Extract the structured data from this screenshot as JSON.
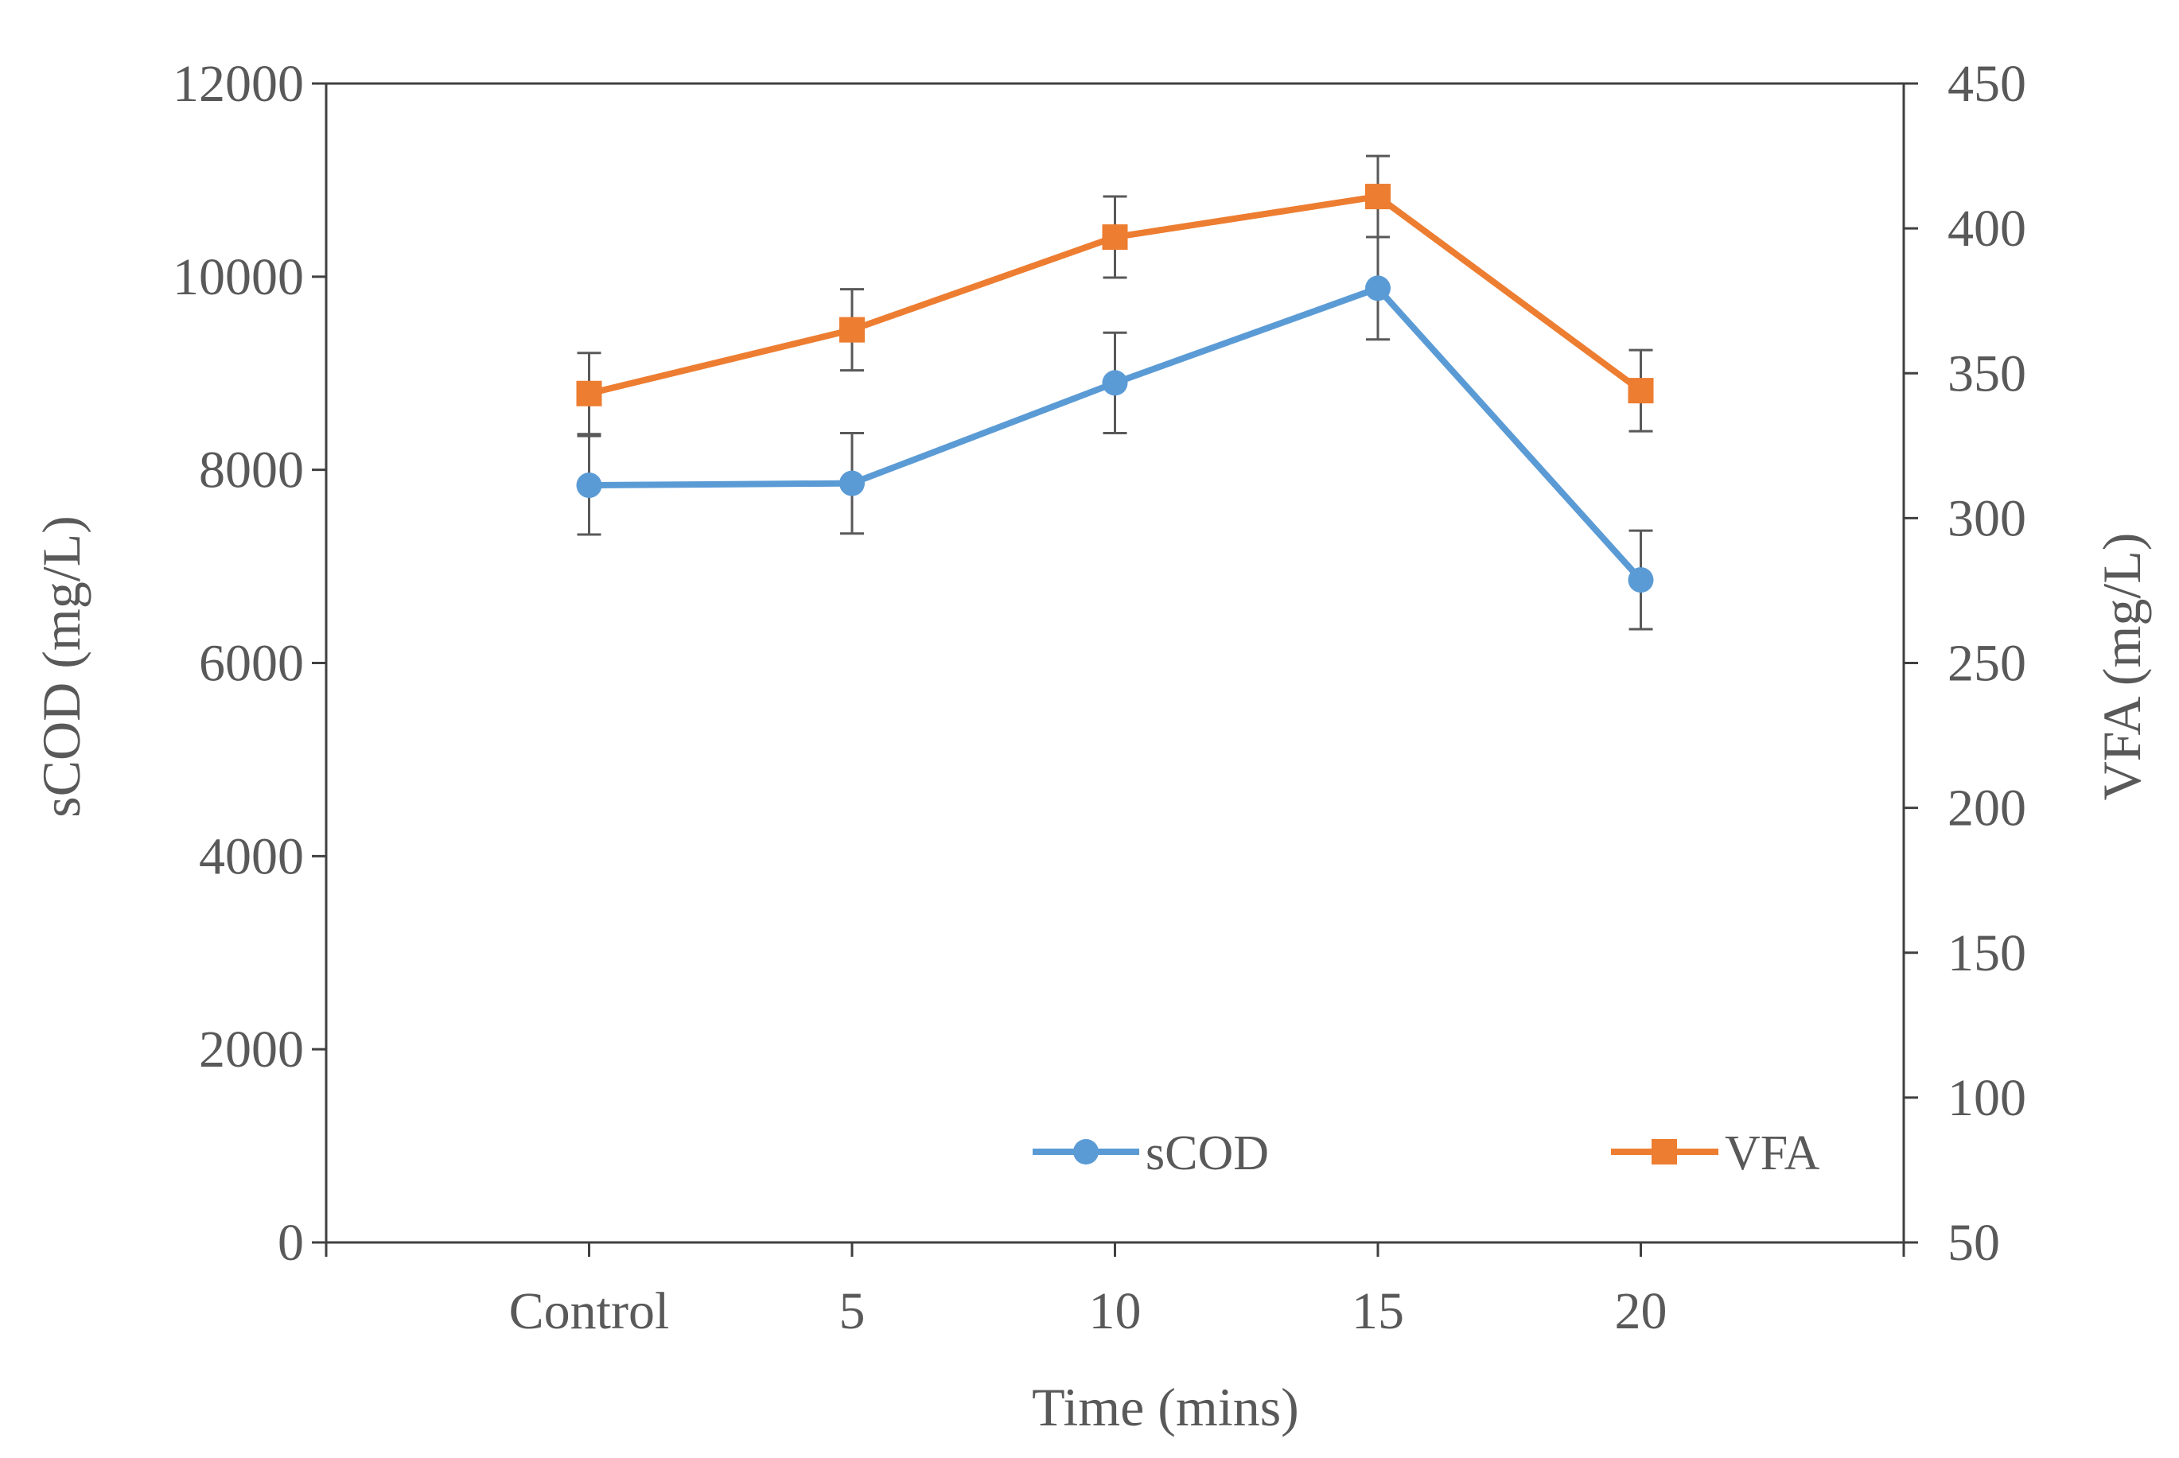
{
  "chart_data": {
    "type": "line",
    "categories": [
      "Control",
      "5",
      "10",
      "15",
      "20"
    ],
    "xlabel": "Time (mins)",
    "ylabel": "sCOD (mg/L)",
    "y2label": "VFA (mg/L)",
    "ylim": [
      0,
      12000
    ],
    "y2lim": [
      50,
      450
    ],
    "yticks": [
      "0",
      "2000",
      "4000",
      "6000",
      "8000",
      "10000",
      "12000"
    ],
    "y2ticks": [
      "50",
      "100",
      "150",
      "200",
      "250",
      "300",
      "350",
      "400",
      "450"
    ],
    "grid": false,
    "legend_position": "bottom-right",
    "series": [
      {
        "name": "sCOD",
        "axis": "left",
        "color": "#5B9BD5",
        "marker": "circle",
        "values": [
          7840,
          7860,
          8900,
          9880,
          6860
        ],
        "error": [
          510,
          520,
          520,
          530,
          510
        ]
      },
      {
        "name": "VFA",
        "axis": "right",
        "color": "#ED7D31",
        "marker": "square",
        "values": [
          343,
          365,
          397,
          411,
          344
        ],
        "error": [
          14,
          14,
          14,
          14,
          14
        ]
      }
    ]
  }
}
